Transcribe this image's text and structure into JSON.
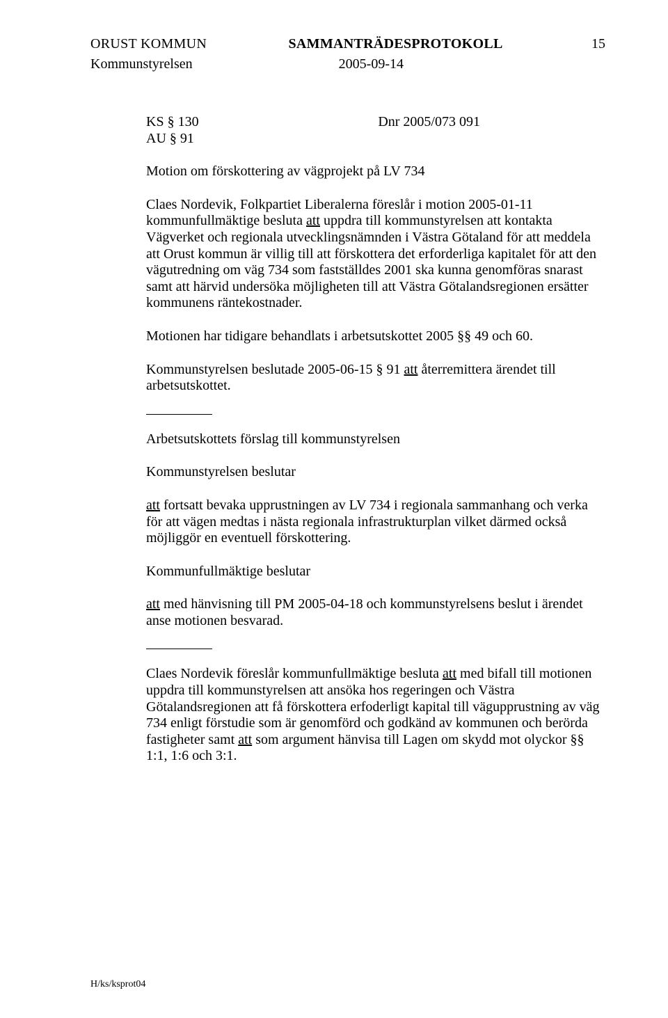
{
  "header": {
    "org": "ORUST KOMMUN",
    "doc_type": "SAMMANTRÄDESPROTOKOLL",
    "page_num": "15",
    "committee": "Kommunstyrelsen",
    "date": "2005-09-14"
  },
  "ref": {
    "ks": "KS § 130",
    "au": "AU § 91",
    "dnr": "Dnr 2005/073  091"
  },
  "title": "Motion om förskottering av vägprojekt på LV 734",
  "p1_a": "Claes Nordevik, Folkpartiet Liberalerna föreslår i motion 2005-01-11 kommunfullmäktige besluta ",
  "p1_att": "att",
  "p1_b": " uppdra till kommunstyrelsen att kontakta Vägverket och regionala utvecklingsnämnden i Västra Götaland för att meddela att Orust kommun är villig till att förskottera det erforderliga kapitalet för att den vägutredning om väg 734 som fastställdes 2001 ska kunna genomföras snarast samt att härvid undersöka möjligheten till att Västra Götalandsregionen ersätter kommunens räntekostnader.",
  "p2": "Motionen har tidigare behandlats i arbetsutskottet 2005 §§ 49 och 60.",
  "p3_a": "Kommunstyrelsen beslutade 2005-06-15 § 91 ",
  "p3_att": "att",
  "p3_b": " återremittera ärendet till arbetsutskottet.",
  "h1": "Arbetsutskottets förslag till kommunstyrelsen",
  "h2": "Kommunstyrelsen beslutar",
  "p4_att": "att",
  "p4_b": " fortsatt bevaka upprustningen av LV 734 i regionala sammanhang och verka för att vägen medtas i nästa regionala infrastrukturplan vilket därmed också möjliggör en eventuell förskottering.",
  "h3": "Kommunfullmäktige beslutar",
  "p5_att": "att",
  "p5_b": " med hänvisning till PM 2005-04-18 och kommunstyrelsens beslut i ärendet anse motionen besvarad.",
  "p6_a": "Claes Nordevik föreslår kommunfullmäktige besluta ",
  "p6_att1": "att",
  "p6_b": " med bifall till motionen uppdra till kommunstyrelsen att ansöka hos regeringen och Västra Götalandsregionen att få förskottera erfoderligt kapital till vägupprustning av väg 734 enligt förstudie som är genomförd och godkänd av kommunen och berörda fastigheter samt ",
  "p6_att2": "att",
  "p6_c": " som argument hänvisa till Lagen om skydd mot olyckor §§ 1:1, 1:6 och 3:1.",
  "footer": "H/ks/ksprot04"
}
